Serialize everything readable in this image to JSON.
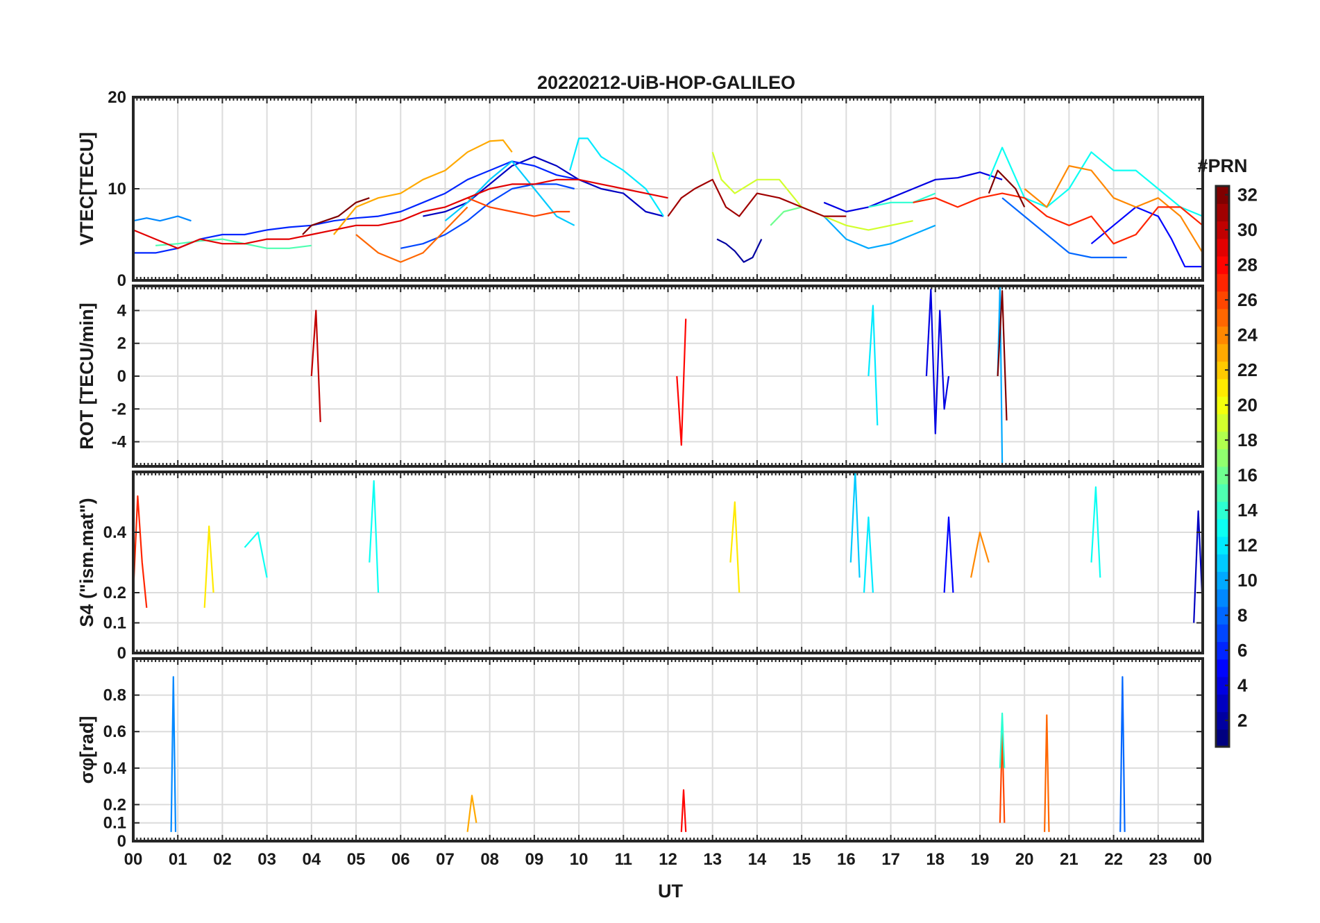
{
  "chart_data": {
    "type": "line",
    "title": "20220212-UiB-HOP-GALILEO",
    "xlabel": "UT",
    "x_tick_labels": [
      "00",
      "01",
      "02",
      "03",
      "04",
      "05",
      "06",
      "07",
      "08",
      "09",
      "10",
      "11",
      "12",
      "13",
      "14",
      "15",
      "16",
      "17",
      "18",
      "19",
      "20",
      "21",
      "22",
      "23",
      "00"
    ],
    "x_range_hours": [
      0,
      24
    ],
    "grid": true,
    "legend": "colorbar-right",
    "colorbar": {
      "title": "#PRN",
      "range": [
        1,
        32
      ],
      "tick_labels": [
        "2",
        "4",
        "6",
        "8",
        "10",
        "12",
        "14",
        "16",
        "18",
        "20",
        "22",
        "24",
        "26",
        "28",
        "30",
        "32"
      ],
      "colormap": "jet"
    },
    "panels": [
      {
        "ylabel": "VTEC[TECU]",
        "ylim": [
          0,
          20
        ],
        "yticks": [
          0,
          10,
          20
        ],
        "tick_labels": [
          "0",
          "10",
          "20"
        ],
        "series": [
          {
            "prn": 2,
            "x": [
              13.1,
              13.3,
              13.5,
              13.7,
              13.9,
              14.1
            ],
            "y": [
              4.5,
              4,
              3.2,
              2,
              2.5,
              4.5
            ]
          },
          {
            "prn": 3,
            "x": [
              6.5,
              7,
              7.5,
              8,
              8.5,
              9,
              9.5,
              10,
              10.5,
              11,
              11.5,
              11.9
            ],
            "y": [
              7,
              7.5,
              8.5,
              10.5,
              12.5,
              13.5,
              12.5,
              11,
              10,
              9.5,
              7.5,
              7
            ]
          },
          {
            "prn": 4,
            "x": [
              15.5,
              16,
              16.5,
              17,
              17.5,
              18,
              18.5,
              19,
              19.5
            ],
            "y": [
              8.5,
              7.5,
              8,
              9,
              10,
              11,
              11.2,
              11.8,
              11
            ]
          },
          {
            "prn": 5,
            "x": [
              21.5,
              22,
              22.5,
              23,
              23.3,
              23.6,
              24
            ],
            "y": [
              4,
              6,
              8,
              7,
              4.5,
              1.5,
              1.5
            ]
          },
          {
            "prn": 6,
            "x": [
              0,
              0.5,
              1,
              1.5,
              2,
              2.5,
              3,
              3.5,
              4,
              4.5,
              5,
              5.5,
              6,
              6.5,
              7,
              7.5,
              8,
              8.5,
              9,
              9.5,
              10
            ],
            "y": [
              3,
              3,
              3.5,
              4.5,
              5,
              5,
              5.5,
              5.8,
              6,
              6.5,
              6.8,
              7,
              7.5,
              8.5,
              9.5,
              11,
              12,
              13,
              12.5,
              11.5,
              11
            ]
          },
          {
            "prn": 7,
            "x": [
              6,
              6.5,
              7,
              7.5,
              8,
              8.5,
              9,
              9.5,
              9.9
            ],
            "y": [
              3.5,
              4,
              5,
              6.5,
              8.5,
              10,
              10.5,
              10.5,
              10
            ]
          },
          {
            "prn": 8,
            "x": [
              19.5,
              20,
              20.5,
              21,
              21.5,
              22,
              22.3
            ],
            "y": [
              9,
              7,
              5,
              3,
              2.5,
              2.5,
              2.5
            ]
          },
          {
            "prn": 9,
            "x": [
              0,
              0.3,
              0.6,
              1,
              1.3
            ],
            "y": [
              6.5,
              6.8,
              6.5,
              7,
              6.5
            ]
          },
          {
            "prn": 10,
            "x": [
              15.5,
              16,
              16.5,
              17,
              17.5,
              18
            ],
            "y": [
              7,
              4.5,
              3.5,
              4,
              5,
              6
            ]
          },
          {
            "prn": 11,
            "x": [
              7,
              7.5,
              8,
              8.5,
              9,
              9.5,
              9.9
            ],
            "y": [
              6.5,
              8.5,
              11,
              13,
              10,
              7,
              6
            ]
          },
          {
            "prn": 12,
            "x": [
              9.8,
              10,
              10.2,
              10.5,
              11,
              11.5,
              11.9
            ],
            "y": [
              12,
              15.5,
              15.5,
              13.5,
              12,
              10,
              7
            ]
          },
          {
            "prn": 13,
            "x": [
              19.2,
              19.5,
              20,
              20.5,
              21,
              21.5,
              22,
              22.5,
              23,
              23.5,
              24
            ],
            "y": [
              11,
              14.5,
              9,
              8,
              10,
              14,
              12,
              12,
              10,
              8,
              7
            ]
          },
          {
            "prn": 14,
            "x": [
              16.5,
              17,
              17.5,
              18
            ],
            "y": [
              8,
              8.5,
              8.5,
              9.5
            ]
          },
          {
            "prn": 15,
            "x": [
              0.5,
              1,
              1.5,
              2,
              2.5,
              3,
              3.5,
              4
            ],
            "y": [
              3.8,
              4,
              4.3,
              4.5,
              4,
              3.5,
              3.5,
              3.8
            ]
          },
          {
            "prn": 16,
            "x": [
              14.3,
              14.6,
              15
            ],
            "y": [
              6,
              7.5,
              8
            ]
          },
          {
            "prn": 19,
            "x": [
              13,
              13.2,
              13.5,
              14,
              14.5,
              15,
              15.5,
              16,
              16.5,
              17,
              17.5
            ],
            "y": [
              14,
              11,
              9.5,
              11,
              11,
              8,
              7,
              6,
              5.5,
              6,
              6.5
            ]
          },
          {
            "prn": 23,
            "x": [
              4.5,
              5,
              5.5,
              6,
              6.5,
              7,
              7.5,
              8,
              8.3,
              8.5
            ],
            "y": [
              5,
              8,
              9,
              9.5,
              11,
              12,
              14,
              15.2,
              15.3,
              14
            ]
          },
          {
            "prn": 24,
            "x": [
              20,
              20.5,
              21,
              21.5,
              22,
              22.5,
              23,
              23.5,
              24
            ],
            "y": [
              10,
              8,
              12.5,
              12,
              9,
              8,
              9,
              7,
              3
            ]
          },
          {
            "prn": 25,
            "x": [
              5,
              5.5,
              6,
              6.5,
              7,
              7.5
            ],
            "y": [
              5,
              3,
              2,
              3,
              5.5,
              8
            ]
          },
          {
            "prn": 26,
            "x": [
              7.5,
              8,
              8.5,
              9,
              9.5,
              9.8
            ],
            "y": [
              9,
              8,
              7.5,
              7,
              7.5,
              7.5
            ]
          },
          {
            "prn": 27,
            "x": [
              17.5,
              18,
              18.5,
              19,
              19.5,
              20,
              20.5,
              21,
              21.5,
              22,
              22.5,
              23,
              23.5,
              24
            ],
            "y": [
              8.5,
              9,
              8,
              9,
              9.5,
              9,
              7,
              6,
              7,
              4,
              5,
              8,
              8,
              6
            ]
          },
          {
            "prn": 29,
            "x": [
              0,
              0.5,
              1,
              1.5,
              2,
              2.5,
              3,
              3.5,
              4,
              4.5,
              5,
              5.5,
              6,
              6.5,
              7,
              7.5,
              8,
              8.5,
              9,
              9.5,
              10,
              10.5,
              11,
              11.5,
              12
            ],
            "y": [
              5.5,
              4.5,
              3.5,
              4.5,
              4,
              4,
              4.5,
              4.5,
              5,
              5.5,
              6,
              6,
              6.5,
              7.5,
              8,
              9,
              10,
              10.5,
              10.5,
              11,
              11,
              10.5,
              10,
              9.5,
              9
            ]
          },
          {
            "prn": 31,
            "x": [
              12,
              12.3,
              12.6,
              13,
              13.3,
              13.6,
              14,
              14.5,
              15,
              15.5,
              16
            ],
            "y": [
              7,
              9,
              10,
              11,
              8,
              7,
              9.5,
              9,
              8,
              7,
              7
            ]
          },
          {
            "prn": 32,
            "x": [
              3.8,
              4,
              4.3,
              4.6,
              5,
              5.3
            ],
            "y": [
              5,
              6,
              6.5,
              7,
              8.5,
              9
            ]
          },
          {
            "prn": 32,
            "x": [
              19.2,
              19.4,
              19.6,
              19.8,
              20
            ],
            "y": [
              9.5,
              12,
              11,
              10,
              8
            ]
          }
        ]
      },
      {
        "ylabel": "ROT [TECU/min]",
        "ylim": [
          -5.5,
          5.5
        ],
        "yticks": [
          -4,
          -2,
          0,
          2,
          4
        ],
        "tick_labels": [
          "-4",
          "-2",
          "0",
          "2",
          "4"
        ],
        "series": [
          {
            "prn": 4,
            "x": [
              17.8,
              17.9,
              18.0,
              18.1,
              18.2,
              18.3
            ],
            "y": [
              0,
              5.3,
              -3.5,
              4,
              -2,
              0
            ]
          },
          {
            "prn": 10,
            "x": [
              19.4,
              19.45,
              19.5
            ],
            "y": [
              0,
              5.5,
              -5.3
            ]
          },
          {
            "prn": 12,
            "x": [
              16.5,
              16.6,
              16.7
            ],
            "y": [
              0,
              4.3,
              -3
            ]
          },
          {
            "prn": 28,
            "x": [
              12.2,
              12.3,
              12.4
            ],
            "y": [
              0,
              -4.2,
              3.5
            ]
          },
          {
            "prn": 30,
            "x": [
              4.0,
              4.1,
              4.2
            ],
            "y": [
              0,
              4,
              -2.8
            ]
          },
          {
            "prn": 32,
            "x": [
              19.4,
              19.5,
              19.6
            ],
            "y": [
              0,
              5.2,
              -2.7
            ]
          }
        ]
      },
      {
        "ylabel": "S4 (\"ism.mat\")",
        "ylim": [
          0,
          0.6
        ],
        "yticks": [
          0,
          0.1,
          0.2,
          0.4
        ],
        "tick_labels": [
          "0",
          "0.1",
          "0.2",
          "0.4"
        ],
        "series": [
          {
            "prn": 27,
            "x": [
              0,
              0.1,
              0.2,
              0.3
            ],
            "y": [
              0.2,
              0.52,
              0.3,
              0.15
            ]
          },
          {
            "prn": 21,
            "x": [
              1.6,
              1.7,
              1.8
            ],
            "y": [
              0.15,
              0.42,
              0.2
            ]
          },
          {
            "prn": 13,
            "x": [
              2.5,
              2.8,
              3.0
            ],
            "y": [
              0.35,
              0.4,
              0.25
            ]
          },
          {
            "prn": 13,
            "x": [
              5.3,
              5.4,
              5.5
            ],
            "y": [
              0.3,
              0.57,
              0.2
            ]
          },
          {
            "prn": 21,
            "x": [
              13.4,
              13.5,
              13.6
            ],
            "y": [
              0.3,
              0.5,
              0.2
            ]
          },
          {
            "prn": 11,
            "x": [
              16.1,
              16.2,
              16.3
            ],
            "y": [
              0.3,
              0.6,
              0.25
            ]
          },
          {
            "prn": 12,
            "x": [
              16.4,
              16.5,
              16.6
            ],
            "y": [
              0.2,
              0.45,
              0.2
            ]
          },
          {
            "prn": 5,
            "x": [
              18.2,
              18.3,
              18.4
            ],
            "y": [
              0.2,
              0.45,
              0.2
            ]
          },
          {
            "prn": 24,
            "x": [
              18.8,
              19.0,
              19.2
            ],
            "y": [
              0.25,
              0.4,
              0.3
            ]
          },
          {
            "prn": 13,
            "x": [
              21.5,
              21.6,
              21.7
            ],
            "y": [
              0.3,
              0.55,
              0.25
            ]
          },
          {
            "prn": 3,
            "x": [
              23.8,
              23.9,
              24
            ],
            "y": [
              0.1,
              0.47,
              0.15
            ]
          }
        ]
      },
      {
        "ylabel": "σφ[rad]",
        "ylim": [
          0,
          1
        ],
        "yticks": [
          0,
          0.1,
          0.2,
          0.4,
          0.6,
          0.8
        ],
        "tick_labels": [
          "0",
          "0.1",
          "0.2",
          "0.4",
          "0.6",
          "0.8"
        ],
        "series": [
          {
            "prn": 9,
            "x": [
              0.85,
              0.9,
              0.95
            ],
            "y": [
              0.05,
              0.9,
              0.05
            ]
          },
          {
            "prn": 23,
            "x": [
              7.5,
              7.6,
              7.7
            ],
            "y": [
              0.05,
              0.25,
              0.1
            ]
          },
          {
            "prn": 28,
            "x": [
              12.3,
              12.35,
              12.4
            ],
            "y": [
              0.05,
              0.28,
              0.05
            ]
          },
          {
            "prn": 26,
            "x": [
              19.45,
              19.5,
              19.55
            ],
            "y": [
              0.1,
              0.6,
              0.1
            ]
          },
          {
            "prn": 14,
            "x": [
              19.45,
              19.5,
              19.55
            ],
            "y": [
              0.4,
              0.7,
              0.4
            ]
          },
          {
            "prn": 25,
            "x": [
              20.45,
              20.5,
              20.55
            ],
            "y": [
              0.05,
              0.69,
              0.05
            ]
          },
          {
            "prn": 8,
            "x": [
              22.15,
              22.2,
              22.25
            ],
            "y": [
              0.05,
              0.9,
              0.05
            ]
          }
        ]
      }
    ]
  }
}
